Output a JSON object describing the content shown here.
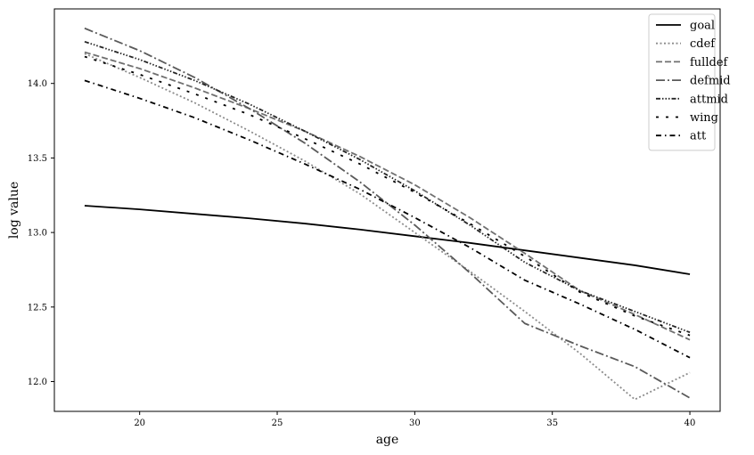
{
  "chart_data": {
    "type": "line",
    "title": "",
    "xlabel": "age",
    "ylabel": "log value",
    "xlim": [
      16.9,
      41.1
    ],
    "ylim": [
      11.8,
      14.5
    ],
    "xticks": [
      20,
      25,
      30,
      35,
      40
    ],
    "yticks": [
      12.0,
      12.5,
      13.0,
      13.5,
      14.0
    ],
    "xtick_labels": [
      "20",
      "25",
      "30",
      "35",
      "40"
    ],
    "ytick_labels": [
      "12.0",
      "12.5",
      "13.0",
      "13.5",
      "14.0"
    ],
    "x": [
      18,
      20,
      22,
      24,
      26,
      28,
      30,
      32,
      34,
      36,
      38,
      40
    ],
    "legend_position": "top-right",
    "grid": false,
    "series": [
      {
        "name": "goal",
        "color": "#000000",
        "dash": "",
        "values": [
          13.18,
          13.155,
          13.125,
          13.095,
          13.06,
          13.02,
          12.975,
          12.93,
          12.88,
          12.83,
          12.78,
          12.72
        ]
      },
      {
        "name": "cdef",
        "color": "#8c8c8c",
        "dash": "2,2.5",
        "values": [
          14.2,
          14.04,
          13.87,
          13.68,
          13.48,
          13.26,
          13.0,
          12.74,
          12.47,
          12.19,
          11.88,
          12.06
        ]
      },
      {
        "name": "fulldef",
        "color": "#707070",
        "dash": "7,3",
        "values": [
          14.21,
          14.1,
          13.97,
          13.83,
          13.68,
          13.51,
          13.32,
          13.1,
          12.86,
          12.61,
          12.45,
          12.28
        ]
      },
      {
        "name": "defmid",
        "color": "#5a5a5a",
        "dash": "10,3,2,3",
        "values": [
          14.37,
          14.22,
          14.04,
          13.83,
          13.6,
          13.34,
          13.05,
          12.73,
          12.39,
          12.24,
          12.1,
          11.89
        ]
      },
      {
        "name": "attmid",
        "color": "#262626",
        "dash": "5,2,1.5,2,1.5,2,1.5,2",
        "values": [
          14.28,
          14.16,
          14.02,
          13.86,
          13.68,
          13.49,
          13.28,
          13.05,
          12.8,
          12.61,
          12.47,
          12.33
        ]
      },
      {
        "name": "wing",
        "color": "#000000",
        "dash": "3,8",
        "values": [
          14.18,
          14.06,
          13.93,
          13.79,
          13.63,
          13.46,
          13.27,
          13.06,
          12.84,
          12.6,
          12.44,
          12.31
        ]
      },
      {
        "name": "att",
        "color": "#000000",
        "dash": "6,4,1.5,4",
        "values": [
          14.02,
          13.9,
          13.77,
          13.62,
          13.46,
          13.29,
          13.1,
          12.9,
          12.68,
          12.52,
          12.35,
          12.16
        ]
      }
    ]
  }
}
